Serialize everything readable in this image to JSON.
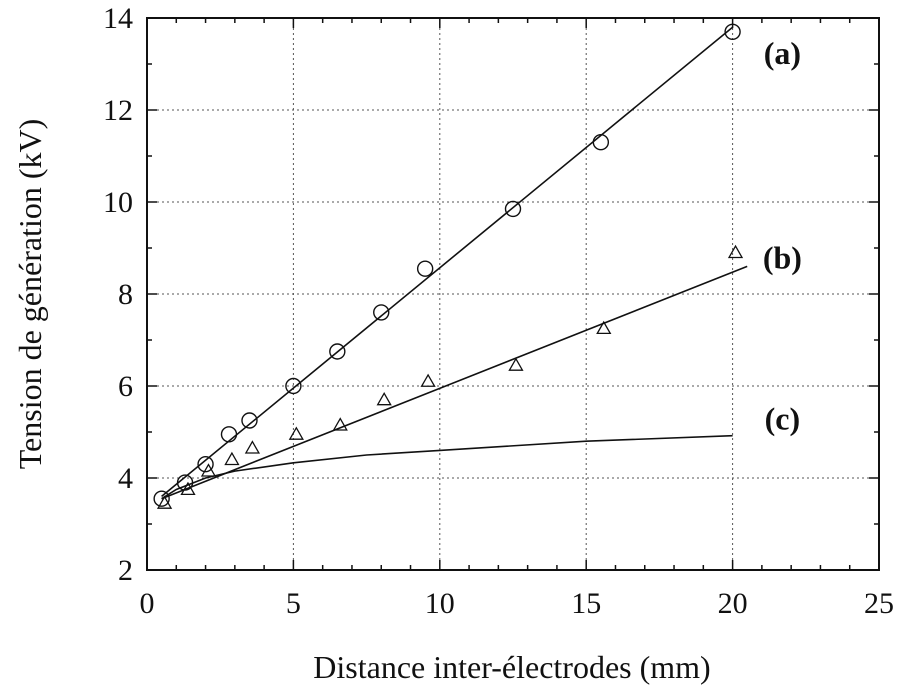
{
  "chart_data": {
    "type": "scatter",
    "xlabel": "Distance inter-électrodes (mm)",
    "ylabel": "Tension de génération (kV)",
    "xlim": [
      0,
      25
    ],
    "ylim": [
      2,
      14
    ],
    "x_ticks": [
      "0",
      "5",
      "10",
      "15",
      "20",
      "25"
    ],
    "y_ticks": [
      "2",
      "4",
      "6",
      "8",
      "10",
      "12",
      "14"
    ],
    "grid": true,
    "series": [
      {
        "name": "(a)",
        "marker": "circle",
        "points": [
          [
            0.5,
            3.55
          ],
          [
            1.3,
            3.9
          ],
          [
            2.0,
            4.3
          ],
          [
            2.8,
            4.95
          ],
          [
            3.5,
            5.25
          ],
          [
            5.0,
            6.0
          ],
          [
            6.5,
            6.75
          ],
          [
            8.0,
            7.6
          ],
          [
            9.5,
            8.55
          ],
          [
            12.5,
            9.85
          ],
          [
            15.5,
            11.3
          ],
          [
            20.0,
            13.7
          ]
        ],
        "fit": [
          [
            0.5,
            3.6
          ],
          [
            20.0,
            13.8
          ]
        ]
      },
      {
        "name": "(b)",
        "marker": "triangle",
        "points": [
          [
            0.6,
            3.45
          ],
          [
            1.4,
            3.75
          ],
          [
            2.1,
            4.15
          ],
          [
            2.9,
            4.4
          ],
          [
            3.6,
            4.65
          ],
          [
            5.1,
            4.95
          ],
          [
            6.6,
            5.15
          ],
          [
            8.1,
            5.7
          ],
          [
            9.6,
            6.1
          ],
          [
            12.6,
            6.45
          ],
          [
            15.6,
            7.25
          ],
          [
            20.1,
            8.9
          ]
        ],
        "fit": [
          [
            0.5,
            3.55
          ],
          [
            20.5,
            8.6
          ]
        ]
      },
      {
        "name": "(c)",
        "marker": "none",
        "curve": [
          [
            0.5,
            3.55
          ],
          [
            1.0,
            3.75
          ],
          [
            2.0,
            4.0
          ],
          [
            3.0,
            4.15
          ],
          [
            5.0,
            4.33
          ],
          [
            7.5,
            4.5
          ],
          [
            10.0,
            4.6
          ],
          [
            15.0,
            4.8
          ],
          [
            20.0,
            4.92
          ]
        ]
      }
    ]
  }
}
